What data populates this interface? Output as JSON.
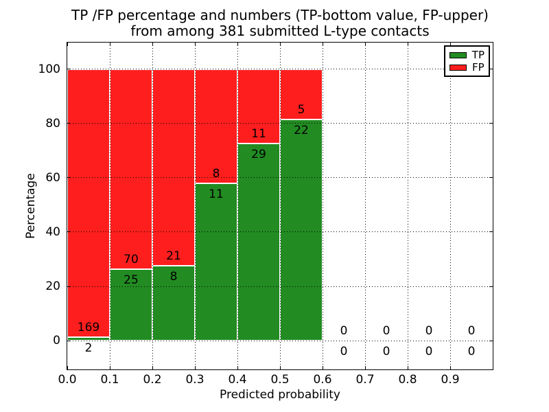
{
  "chart_data": {
    "type": "bar",
    "stacked": true,
    "normalized_to_percent": true,
    "title": "TP /FP percentage and numbers (TP-bottom value, FP-upper)\nfrom among 381 submitted L-type contacts",
    "title_line1": "TP /FP percentage and numbers (TP-bottom value, FP-upper)",
    "title_line2": "from among 381 submitted L-type contacts",
    "xlabel": "Predicted probability",
    "ylabel": "Percentage",
    "total_submitted_contacts": 381,
    "xlim": [
      0.0,
      1.0
    ],
    "ylim": [
      -10.6,
      109.8
    ],
    "xticks": [
      0.0,
      0.1,
      0.2,
      0.3,
      0.4,
      0.5,
      0.6,
      0.7,
      0.8,
      0.9
    ],
    "yticks": [
      0,
      20,
      40,
      60,
      80,
      100
    ],
    "grid": true,
    "grid_style": "dotted",
    "legend": {
      "position": "upper right",
      "entries": [
        {
          "label": "TP",
          "color": "#228b22"
        },
        {
          "label": "FP",
          "color": "#fe1e1e"
        }
      ]
    },
    "bar_edge_color": "#ffffff",
    "bins": [
      {
        "range": [
          0.0,
          0.1
        ],
        "tp": 2,
        "fp": 169
      },
      {
        "range": [
          0.1,
          0.2
        ],
        "tp": 25,
        "fp": 70
      },
      {
        "range": [
          0.2,
          0.3
        ],
        "tp": 8,
        "fp": 21
      },
      {
        "range": [
          0.3,
          0.4
        ],
        "tp": 11,
        "fp": 8
      },
      {
        "range": [
          0.4,
          0.5
        ],
        "tp": 29,
        "fp": 11
      },
      {
        "range": [
          0.5,
          0.6
        ],
        "tp": 22,
        "fp": 5
      },
      {
        "range": [
          0.6,
          0.7
        ],
        "tp": 0,
        "fp": 0
      },
      {
        "range": [
          0.7,
          0.8
        ],
        "tp": 0,
        "fp": 0
      },
      {
        "range": [
          0.8,
          0.9
        ],
        "tp": 0,
        "fp": 0
      },
      {
        "range": [
          0.9,
          1.0
        ],
        "tp": 0,
        "fp": 0
      }
    ]
  }
}
